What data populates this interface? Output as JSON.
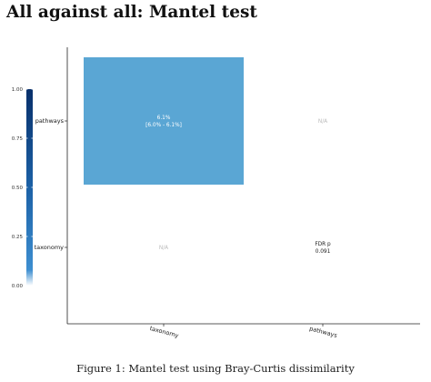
{
  "page": {
    "title": "All against all: Mantel test",
    "caption_prefix": "Figure 1:",
    "caption_text": "Mantel test using Bray-Curtis dissimilarity"
  },
  "chart_data": {
    "type": "heatmap",
    "title": "All against all: Mantel test",
    "x_categories": [
      "taxonomy",
      "pathways"
    ],
    "y_categories": [
      "taxonomy",
      "pathways"
    ],
    "cells": [
      {
        "x": "taxonomy",
        "y": "pathways",
        "value": 0.061,
        "lines": [
          "6.1%",
          "[6.0% - 6.1%]"
        ],
        "text_color": "#ffffff",
        "fill": "#5aa6d4"
      },
      {
        "x": "pathways",
        "y": "pathways",
        "value": null,
        "lines": [
          "N/A"
        ],
        "text_color": "#bbbbbb",
        "fill": "none"
      },
      {
        "x": "taxonomy",
        "y": "taxonomy",
        "value": null,
        "lines": [
          "N/A"
        ],
        "text_color": "#bbbbbb",
        "fill": "none"
      },
      {
        "x": "pathways",
        "y": "taxonomy",
        "value": null,
        "lines": [
          "FDR p",
          "0.091"
        ],
        "text_color": "#1a1a1a",
        "fill": "none"
      }
    ],
    "colorbar": {
      "ticks": [
        "1.00",
        "0.75",
        "0.50",
        "0.25",
        "0.00"
      ],
      "range": [
        0,
        1
      ],
      "color_low": "#ffffff",
      "color_high": "#08306b"
    },
    "grid": false,
    "legend_position": "left"
  }
}
